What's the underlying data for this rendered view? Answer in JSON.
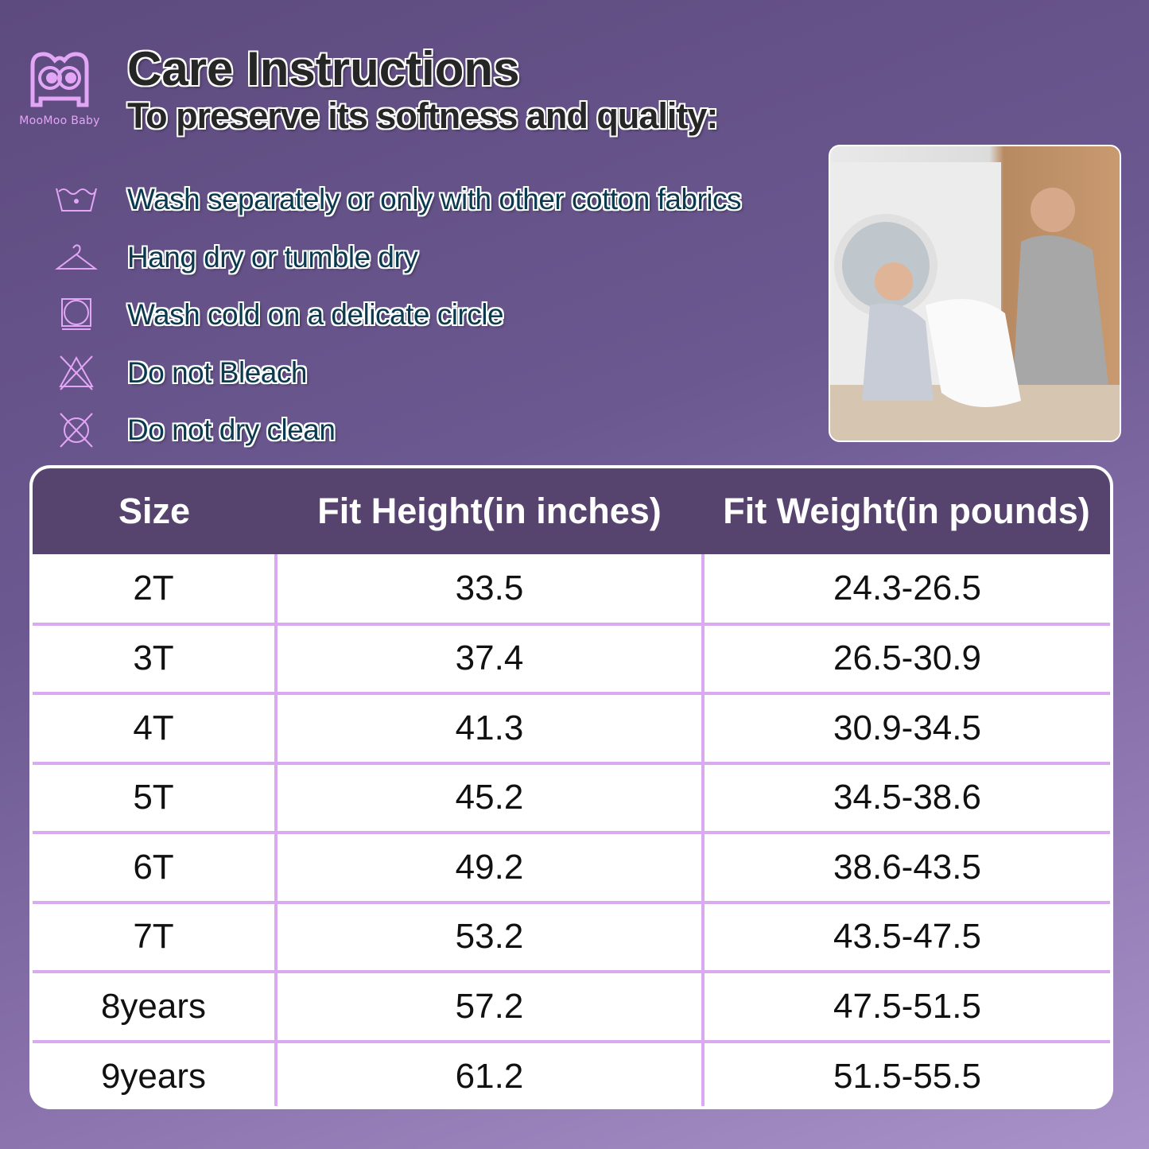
{
  "brand": {
    "name": "MooMoo Baby"
  },
  "header": {
    "title": "Care Instructions",
    "subtitle": "To preserve its softness and quality:"
  },
  "care": [
    {
      "icon": "wash-basin-icon",
      "text": "Wash separately or only with other cotton fabrics"
    },
    {
      "icon": "hanger-icon",
      "text": "Hang dry or tumble dry"
    },
    {
      "icon": "tumble-dry-icon",
      "text": "Wash cold on a delicate circle"
    },
    {
      "icon": "no-bleach-icon",
      "text": "Do not Bleach"
    },
    {
      "icon": "no-dry-clean-icon",
      "text": "Do not dry clean"
    }
  ],
  "table": {
    "headers": [
      "Size",
      "Fit Height(in inches)",
      "Fit Weight(in pounds)"
    ],
    "rows": [
      [
        "2T",
        "33.5",
        "24.3-26.5"
      ],
      [
        "3T",
        "37.4",
        "26.5-30.9"
      ],
      [
        "4T",
        "41.3",
        "30.9-34.5"
      ],
      [
        "5T",
        "45.2",
        "34.5-38.6"
      ],
      [
        "6T",
        "49.2",
        "38.6-43.5"
      ],
      [
        "7T",
        "53.2",
        "43.5-47.5"
      ],
      [
        "8years",
        "57.2",
        "47.5-51.5"
      ],
      [
        "9years",
        "61.2",
        "51.5-55.5"
      ]
    ]
  },
  "colors": {
    "header_bg": "#56446e",
    "accent": "#d9aaf0",
    "icon": "#e3a6f6"
  }
}
